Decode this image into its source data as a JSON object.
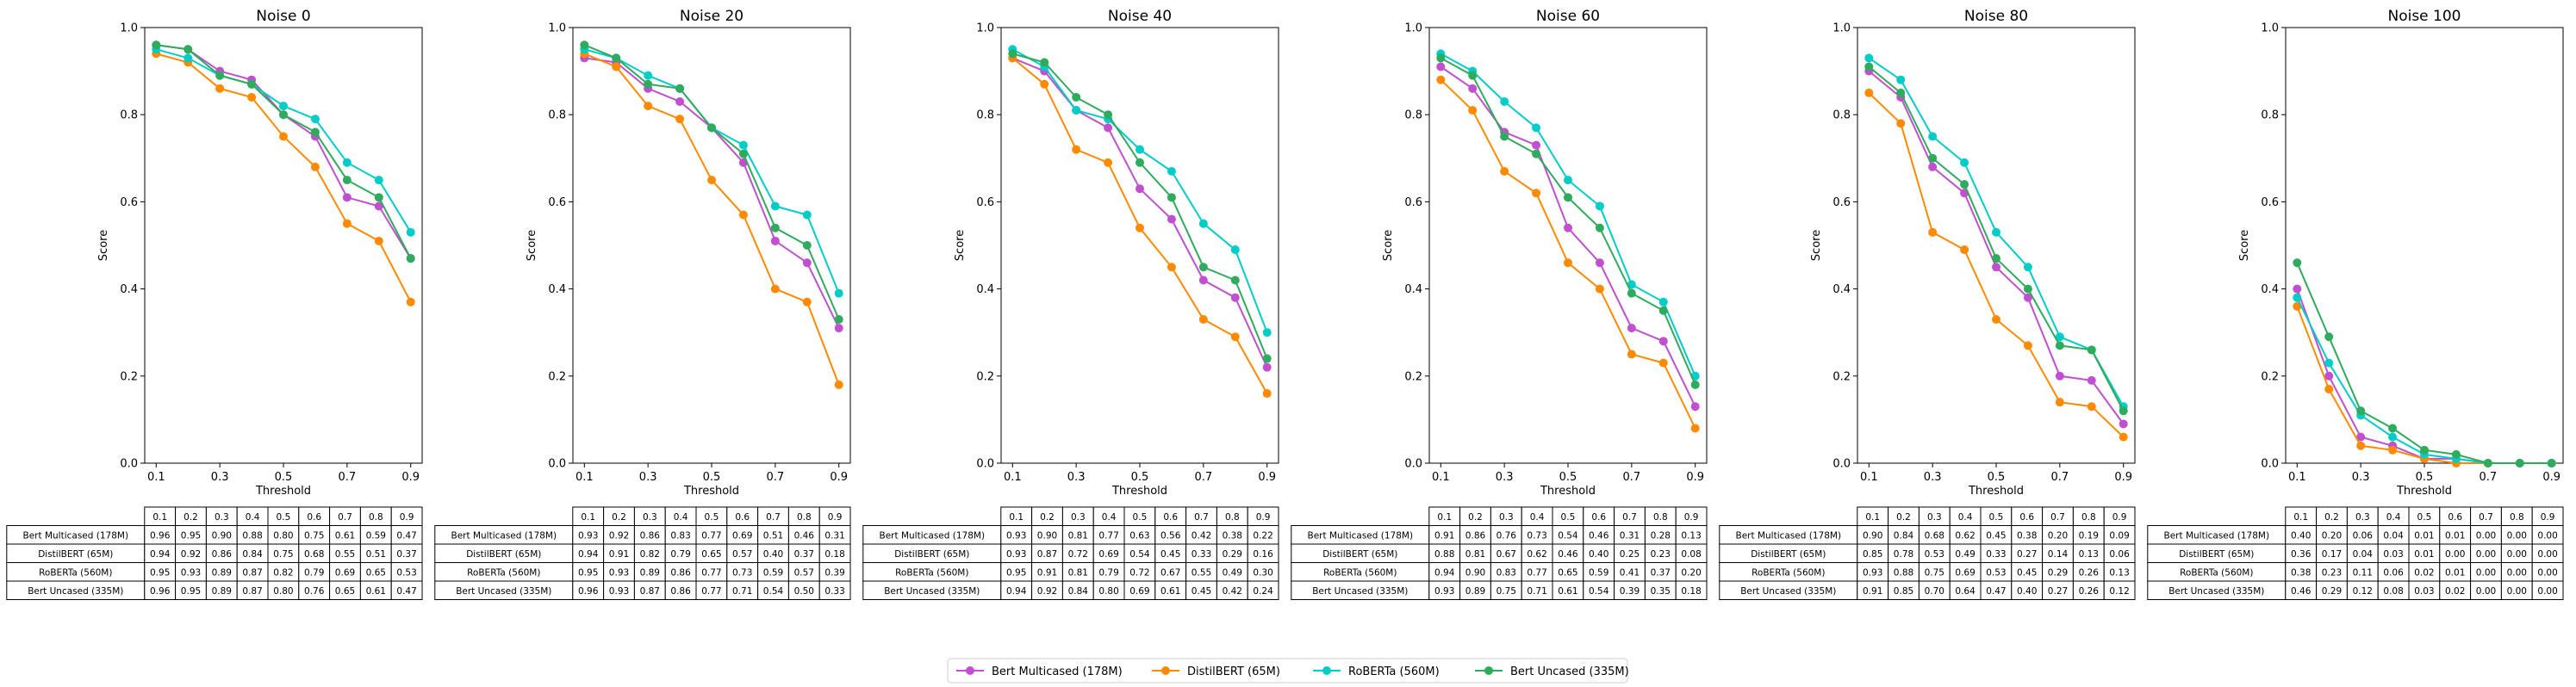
{
  "figure": {
    "legend_position": "bottom-center"
  },
  "legend": {
    "entries": [
      {
        "label": "Bert Multicased (178M)",
        "color": "#c050d0"
      },
      {
        "label": "DistilBERT (65M)",
        "color": "#ff8a00"
      },
      {
        "label": "RoBERTa (560M)",
        "color": "#00cdc8"
      },
      {
        "label": "Bert Uncased (335M)",
        "color": "#2eab5c"
      }
    ]
  },
  "chart_data": [
    {
      "type": "line",
      "title": "Noise 0",
      "xlabel": "Threshold",
      "ylabel": "Score",
      "x": [
        0.1,
        0.2,
        0.3,
        0.4,
        0.5,
        0.6,
        0.7,
        0.8,
        0.9
      ],
      "xticks": [
        "0.1",
        "0.3",
        "0.5",
        "0.7",
        "0.9"
      ],
      "yticks": [
        "0.0",
        "0.2",
        "0.4",
        "0.6",
        "0.8",
        "1.0"
      ],
      "xlim": [
        0.1,
        0.9
      ],
      "ylim": [
        0.0,
        1.0
      ],
      "grid": false,
      "table_columns": [
        "0.1",
        "0.2",
        "0.3",
        "0.4",
        "0.5",
        "0.6",
        "0.7",
        "0.8",
        "0.9"
      ],
      "series": [
        {
          "name": "Bert Multicased (178M)",
          "values": [
            0.96,
            0.95,
            0.9,
            0.88,
            0.8,
            0.75,
            0.61,
            0.59,
            0.47
          ],
          "cells": [
            "0.96",
            "0.95",
            "0.90",
            "0.88",
            "0.80",
            "0.75",
            "0.61",
            "0.59",
            "0.47"
          ]
        },
        {
          "name": "DistilBERT (65M)",
          "values": [
            0.94,
            0.92,
            0.86,
            0.84,
            0.75,
            0.68,
            0.55,
            0.51,
            0.37
          ],
          "cells": [
            "0.94",
            "0.92",
            "0.86",
            "0.84",
            "0.75",
            "0.68",
            "0.55",
            "0.51",
            "0.37"
          ]
        },
        {
          "name": "RoBERTa (560M)",
          "values": [
            0.95,
            0.93,
            0.89,
            0.87,
            0.82,
            0.79,
            0.69,
            0.65,
            0.53
          ],
          "cells": [
            "0.95",
            "0.93",
            "0.89",
            "0.87",
            "0.82",
            "0.79",
            "0.69",
            "0.65",
            "0.53"
          ]
        },
        {
          "name": "Bert Uncased (335M)",
          "values": [
            0.96,
            0.95,
            0.89,
            0.87,
            0.8,
            0.76,
            0.65,
            0.61,
            0.47
          ],
          "cells": [
            "0.96",
            "0.95",
            "0.89",
            "0.87",
            "0.80",
            "0.76",
            "0.65",
            "0.61",
            "0.47"
          ]
        }
      ]
    },
    {
      "type": "line",
      "title": "Noise 20",
      "xlabel": "Threshold",
      "ylabel": "Score",
      "x": [
        0.1,
        0.2,
        0.3,
        0.4,
        0.5,
        0.6,
        0.7,
        0.8,
        0.9
      ],
      "xticks": [
        "0.1",
        "0.3",
        "0.5",
        "0.7",
        "0.9"
      ],
      "yticks": [
        "0.0",
        "0.2",
        "0.4",
        "0.6",
        "0.8",
        "1.0"
      ],
      "xlim": [
        0.1,
        0.9
      ],
      "ylim": [
        0.0,
        1.0
      ],
      "grid": false,
      "table_columns": [
        "0.1",
        "0.2",
        "0.3",
        "0.4",
        "0.5",
        "0.6",
        "0.7",
        "0.8",
        "0.9"
      ],
      "series": [
        {
          "name": "Bert Multicased (178M)",
          "values": [
            0.93,
            0.92,
            0.86,
            0.83,
            0.77,
            0.69,
            0.51,
            0.46,
            0.31
          ],
          "cells": [
            "0.93",
            "0.92",
            "0.86",
            "0.83",
            "0.77",
            "0.69",
            "0.51",
            "0.46",
            "0.31"
          ]
        },
        {
          "name": "DistilBERT (65M)",
          "values": [
            0.94,
            0.91,
            0.82,
            0.79,
            0.65,
            0.57,
            0.4,
            0.37,
            0.18
          ],
          "cells": [
            "0.94",
            "0.91",
            "0.82",
            "0.79",
            "0.65",
            "0.57",
            "0.40",
            "0.37",
            "0.18"
          ]
        },
        {
          "name": "RoBERTa (560M)",
          "values": [
            0.95,
            0.93,
            0.89,
            0.86,
            0.77,
            0.73,
            0.59,
            0.57,
            0.39
          ],
          "cells": [
            "0.95",
            "0.93",
            "0.89",
            "0.86",
            "0.77",
            "0.73",
            "0.59",
            "0.57",
            "0.39"
          ]
        },
        {
          "name": "Bert Uncased (335M)",
          "values": [
            0.96,
            0.93,
            0.87,
            0.86,
            0.77,
            0.71,
            0.54,
            0.5,
            0.33
          ],
          "cells": [
            "0.96",
            "0.93",
            "0.87",
            "0.86",
            "0.77",
            "0.71",
            "0.54",
            "0.50",
            "0.33"
          ]
        }
      ]
    },
    {
      "type": "line",
      "title": "Noise 40",
      "xlabel": "Threshold",
      "ylabel": "Score",
      "x": [
        0.1,
        0.2,
        0.3,
        0.4,
        0.5,
        0.6,
        0.7,
        0.8,
        0.9
      ],
      "xticks": [
        "0.1",
        "0.3",
        "0.5",
        "0.7",
        "0.9"
      ],
      "yticks": [
        "0.0",
        "0.2",
        "0.4",
        "0.6",
        "0.8",
        "1.0"
      ],
      "xlim": [
        0.1,
        0.9
      ],
      "ylim": [
        0.0,
        1.0
      ],
      "grid": false,
      "table_columns": [
        "0.1",
        "0.2",
        "0.3",
        "0.4",
        "0.5",
        "0.6",
        "0.7",
        "0.8",
        "0.9"
      ],
      "series": [
        {
          "name": "Bert Multicased (178M)",
          "values": [
            0.93,
            0.9,
            0.81,
            0.77,
            0.63,
            0.56,
            0.42,
            0.38,
            0.22
          ],
          "cells": [
            "0.93",
            "0.90",
            "0.81",
            "0.77",
            "0.63",
            "0.56",
            "0.42",
            "0.38",
            "0.22"
          ]
        },
        {
          "name": "DistilBERT (65M)",
          "values": [
            0.93,
            0.87,
            0.72,
            0.69,
            0.54,
            0.45,
            0.33,
            0.29,
            0.16
          ],
          "cells": [
            "0.93",
            "0.87",
            "0.72",
            "0.69",
            "0.54",
            "0.45",
            "0.33",
            "0.29",
            "0.16"
          ]
        },
        {
          "name": "RoBERTa (560M)",
          "values": [
            0.95,
            0.91,
            0.81,
            0.79,
            0.72,
            0.67,
            0.55,
            0.49,
            0.3
          ],
          "cells": [
            "0.95",
            "0.91",
            "0.81",
            "0.79",
            "0.72",
            "0.67",
            "0.55",
            "0.49",
            "0.30"
          ]
        },
        {
          "name": "Bert Uncased (335M)",
          "values": [
            0.94,
            0.92,
            0.84,
            0.8,
            0.69,
            0.61,
            0.45,
            0.42,
            0.24
          ],
          "cells": [
            "0.94",
            "0.92",
            "0.84",
            "0.80",
            "0.69",
            "0.61",
            "0.45",
            "0.42",
            "0.24"
          ]
        }
      ]
    },
    {
      "type": "line",
      "title": "Noise 60",
      "xlabel": "Threshold",
      "ylabel": "Score",
      "x": [
        0.1,
        0.2,
        0.3,
        0.4,
        0.5,
        0.6,
        0.7,
        0.8,
        0.9
      ],
      "xticks": [
        "0.1",
        "0.3",
        "0.5",
        "0.7",
        "0.9"
      ],
      "yticks": [
        "0.0",
        "0.2",
        "0.4",
        "0.6",
        "0.8",
        "1.0"
      ],
      "xlim": [
        0.1,
        0.9
      ],
      "ylim": [
        0.0,
        1.0
      ],
      "grid": false,
      "table_columns": [
        "0.1",
        "0.2",
        "0.3",
        "0.4",
        "0.5",
        "0.6",
        "0.7",
        "0.8",
        "0.9"
      ],
      "series": [
        {
          "name": "Bert Multicased (178M)",
          "values": [
            0.91,
            0.86,
            0.76,
            0.73,
            0.54,
            0.46,
            0.31,
            0.28,
            0.13
          ],
          "cells": [
            "0.91",
            "0.86",
            "0.76",
            "0.73",
            "0.54",
            "0.46",
            "0.31",
            "0.28",
            "0.13"
          ]
        },
        {
          "name": "DistilBERT (65M)",
          "values": [
            0.88,
            0.81,
            0.67,
            0.62,
            0.46,
            0.4,
            0.25,
            0.23,
            0.08
          ],
          "cells": [
            "0.88",
            "0.81",
            "0.67",
            "0.62",
            "0.46",
            "0.40",
            "0.25",
            "0.23",
            "0.08"
          ]
        },
        {
          "name": "RoBERTa (560M)",
          "values": [
            0.94,
            0.9,
            0.83,
            0.77,
            0.65,
            0.59,
            0.41,
            0.37,
            0.2
          ],
          "cells": [
            "0.94",
            "0.90",
            "0.83",
            "0.77",
            "0.65",
            "0.59",
            "0.41",
            "0.37",
            "0.20"
          ]
        },
        {
          "name": "Bert Uncased (335M)",
          "values": [
            0.93,
            0.89,
            0.75,
            0.71,
            0.61,
            0.54,
            0.39,
            0.35,
            0.18
          ],
          "cells": [
            "0.93",
            "0.89",
            "0.75",
            "0.71",
            "0.61",
            "0.54",
            "0.39",
            "0.35",
            "0.18"
          ]
        }
      ]
    },
    {
      "type": "line",
      "title": "Noise 80",
      "xlabel": "Threshold",
      "ylabel": "Score",
      "x": [
        0.1,
        0.2,
        0.3,
        0.4,
        0.5,
        0.6,
        0.7,
        0.8,
        0.9
      ],
      "xticks": [
        "0.1",
        "0.3",
        "0.5",
        "0.7",
        "0.9"
      ],
      "yticks": [
        "0.0",
        "0.2",
        "0.4",
        "0.6",
        "0.8",
        "1.0"
      ],
      "xlim": [
        0.1,
        0.9
      ],
      "ylim": [
        0.0,
        1.0
      ],
      "grid": false,
      "table_columns": [
        "0.1",
        "0.2",
        "0.3",
        "0.4",
        "0.5",
        "0.6",
        "0.7",
        "0.8",
        "0.9"
      ],
      "series": [
        {
          "name": "Bert Multicased (178M)",
          "values": [
            0.9,
            0.84,
            0.68,
            0.62,
            0.45,
            0.38,
            0.2,
            0.19,
            0.09
          ],
          "cells": [
            "0.90",
            "0.84",
            "0.68",
            "0.62",
            "0.45",
            "0.38",
            "0.20",
            "0.19",
            "0.09"
          ]
        },
        {
          "name": "DistilBERT (65M)",
          "values": [
            0.85,
            0.78,
            0.53,
            0.49,
            0.33,
            0.27,
            0.14,
            0.13,
            0.06
          ],
          "cells": [
            "0.85",
            "0.78",
            "0.53",
            "0.49",
            "0.33",
            "0.27",
            "0.14",
            "0.13",
            "0.06"
          ]
        },
        {
          "name": "RoBERTa (560M)",
          "values": [
            0.93,
            0.88,
            0.75,
            0.69,
            0.53,
            0.45,
            0.29,
            0.26,
            0.13
          ],
          "cells": [
            "0.93",
            "0.88",
            "0.75",
            "0.69",
            "0.53",
            "0.45",
            "0.29",
            "0.26",
            "0.13"
          ]
        },
        {
          "name": "Bert Uncased (335M)",
          "values": [
            0.91,
            0.85,
            0.7,
            0.64,
            0.47,
            0.4,
            0.27,
            0.26,
            0.12
          ],
          "cells": [
            "0.91",
            "0.85",
            "0.70",
            "0.64",
            "0.47",
            "0.40",
            "0.27",
            "0.26",
            "0.12"
          ]
        }
      ]
    },
    {
      "type": "line",
      "title": "Noise 100",
      "xlabel": "Threshold",
      "ylabel": "Score",
      "x": [
        0.1,
        0.2,
        0.3,
        0.4,
        0.5,
        0.6,
        0.7,
        0.8,
        0.9
      ],
      "xticks": [
        "0.1",
        "0.3",
        "0.5",
        "0.7",
        "0.9"
      ],
      "yticks": [
        "0.0",
        "0.2",
        "0.4",
        "0.6",
        "0.8",
        "1.0"
      ],
      "xlim": [
        0.1,
        0.9
      ],
      "ylim": [
        0.0,
        1.0
      ],
      "grid": false,
      "table_columns": [
        "0.1",
        "0.2",
        "0.3",
        "0.4",
        "0.5",
        "0.6",
        "0.7",
        "0.8",
        "0.9"
      ],
      "series": [
        {
          "name": "Bert Multicased (178M)",
          "values": [
            0.4,
            0.2,
            0.06,
            0.04,
            0.01,
            0.01,
            0.0,
            0.0,
            0.0
          ],
          "cells": [
            "0.40",
            "0.20",
            "0.06",
            "0.04",
            "0.01",
            "0.01",
            "0.00",
            "0.00",
            "0.00"
          ]
        },
        {
          "name": "DistilBERT (65M)",
          "values": [
            0.36,
            0.17,
            0.04,
            0.03,
            0.01,
            0.0,
            0.0,
            0.0,
            0.0
          ],
          "cells": [
            "0.36",
            "0.17",
            "0.04",
            "0.03",
            "0.01",
            "0.00",
            "0.00",
            "0.00",
            "0.00"
          ]
        },
        {
          "name": "RoBERTa (560M)",
          "values": [
            0.38,
            0.23,
            0.11,
            0.06,
            0.02,
            0.01,
            0.0,
            0.0,
            0.0
          ],
          "cells": [
            "0.38",
            "0.23",
            "0.11",
            "0.06",
            "0.02",
            "0.01",
            "0.00",
            "0.00",
            "0.00"
          ]
        },
        {
          "name": "Bert Uncased (335M)",
          "values": [
            0.46,
            0.29,
            0.12,
            0.08,
            0.03,
            0.02,
            0.0,
            0.0,
            0.0
          ],
          "cells": [
            "0.46",
            "0.29",
            "0.12",
            "0.08",
            "0.03",
            "0.02",
            "0.00",
            "0.00",
            "0.00"
          ]
        }
      ]
    }
  ]
}
